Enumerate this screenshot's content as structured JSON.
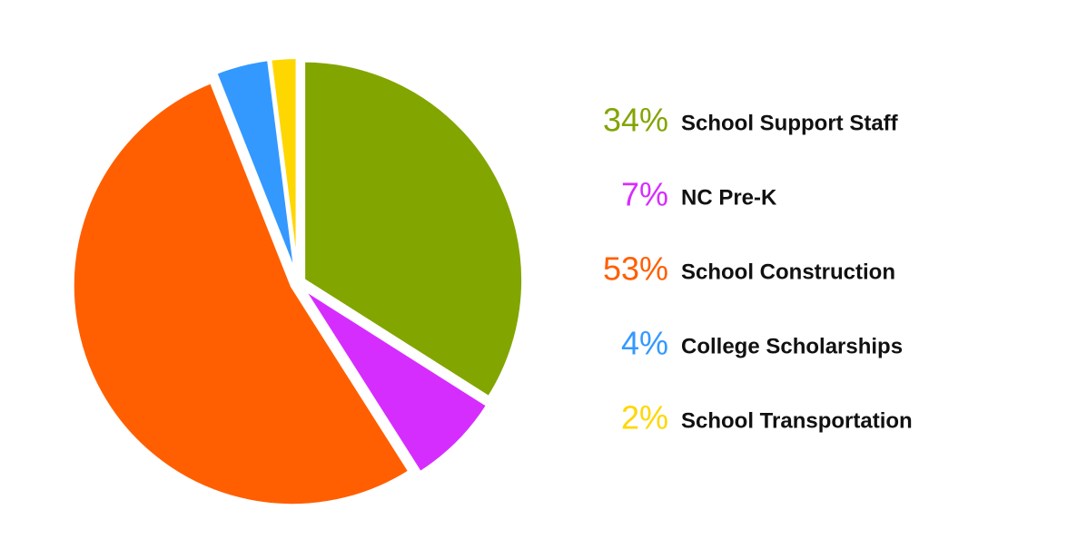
{
  "chart_data": {
    "type": "pie",
    "categories": [
      "School Support Staff",
      "NC Pre-K",
      "School Construction",
      "College Scholarships",
      "School Transportation"
    ],
    "values": [
      34,
      7,
      53,
      4,
      2
    ],
    "value_labels": [
      "34%",
      "7%",
      "53%",
      "4%",
      "2%"
    ],
    "colors": [
      "#82a500",
      "#d62dff",
      "#ff5f00",
      "#3399ff",
      "#ffd700"
    ]
  }
}
